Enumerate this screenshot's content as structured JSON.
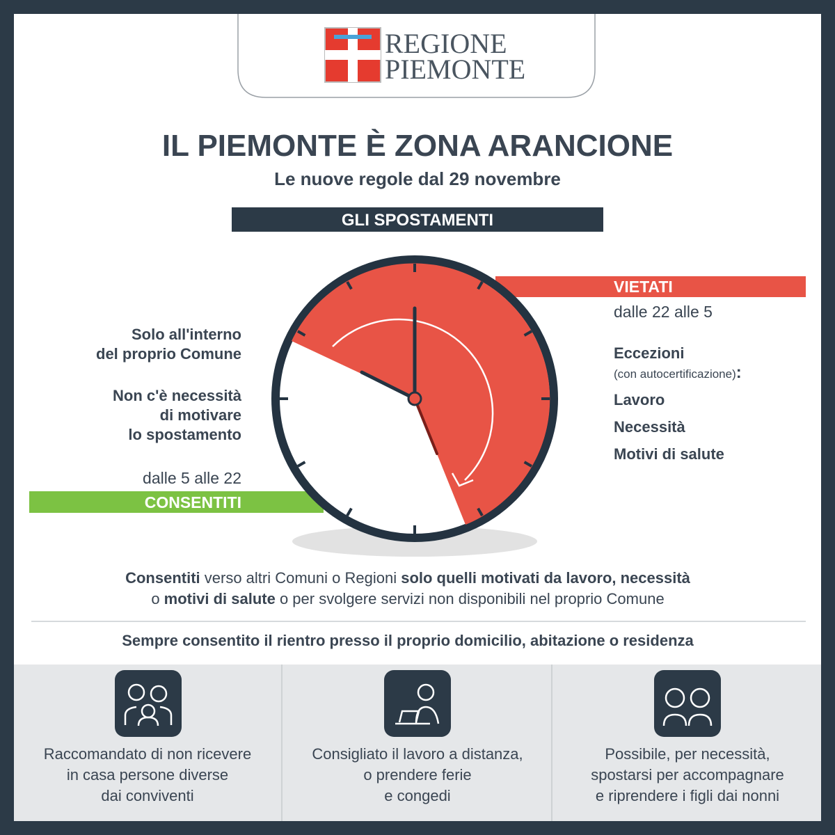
{
  "header": {
    "logo_line1": "REGIONE",
    "logo_line2": "PIEMONTE"
  },
  "title": "IL PIEMONTE È ZONA ARANCIONE",
  "subtitle": "Le nuove regole dal 29 novembre",
  "banner": "GLI SPOSTAMENTI",
  "forbidden": {
    "label": "VIETATI",
    "hours": "dalle 22 alle 5",
    "exceptions_title": "Eccezioni",
    "exceptions_note": "(con autocertificazione)",
    "exceptions_colon": ":",
    "exceptions": [
      "Lavoro",
      "Necessità",
      "Motivi di salute"
    ]
  },
  "allowed": {
    "label": "CONSENTITI",
    "hours": "dalle 5 alle 22",
    "notes": [
      [
        "Solo all'interno",
        "del proprio Comune"
      ],
      [
        "Non c'è necessità",
        "di motivare",
        "lo spostamento"
      ]
    ]
  },
  "rules": {
    "lines": [
      [
        {
          "text": "Consentiti",
          "bold": true
        },
        {
          "text": " verso altri Comuni o Regioni ",
          "bold": false
        },
        {
          "text": "solo quelli motivati da lavoro, necessità",
          "bold": true
        }
      ],
      [
        {
          "text": "o ",
          "bold": false
        },
        {
          "text": "motivi di salute",
          "bold": true
        },
        {
          "text": " o per svolgere servizi non disponibili nel proprio Comune",
          "bold": false
        }
      ]
    ]
  },
  "return_note": "Sempre consentito il rientro presso il proprio domicilio, abitazione o residenza",
  "tips": [
    {
      "lines": [
        "Raccomandato di non ricevere",
        "in casa persone diverse",
        "dai conviventi"
      ]
    },
    {
      "lines": [
        "Consigliato il lavoro a distanza,",
        "o prendere ferie",
        "e congedi"
      ]
    },
    {
      "lines": [
        "Possibile, per necessità,",
        "spostarsi per accompagnare",
        "e riprendere i figli dai nonni"
      ]
    }
  ]
}
